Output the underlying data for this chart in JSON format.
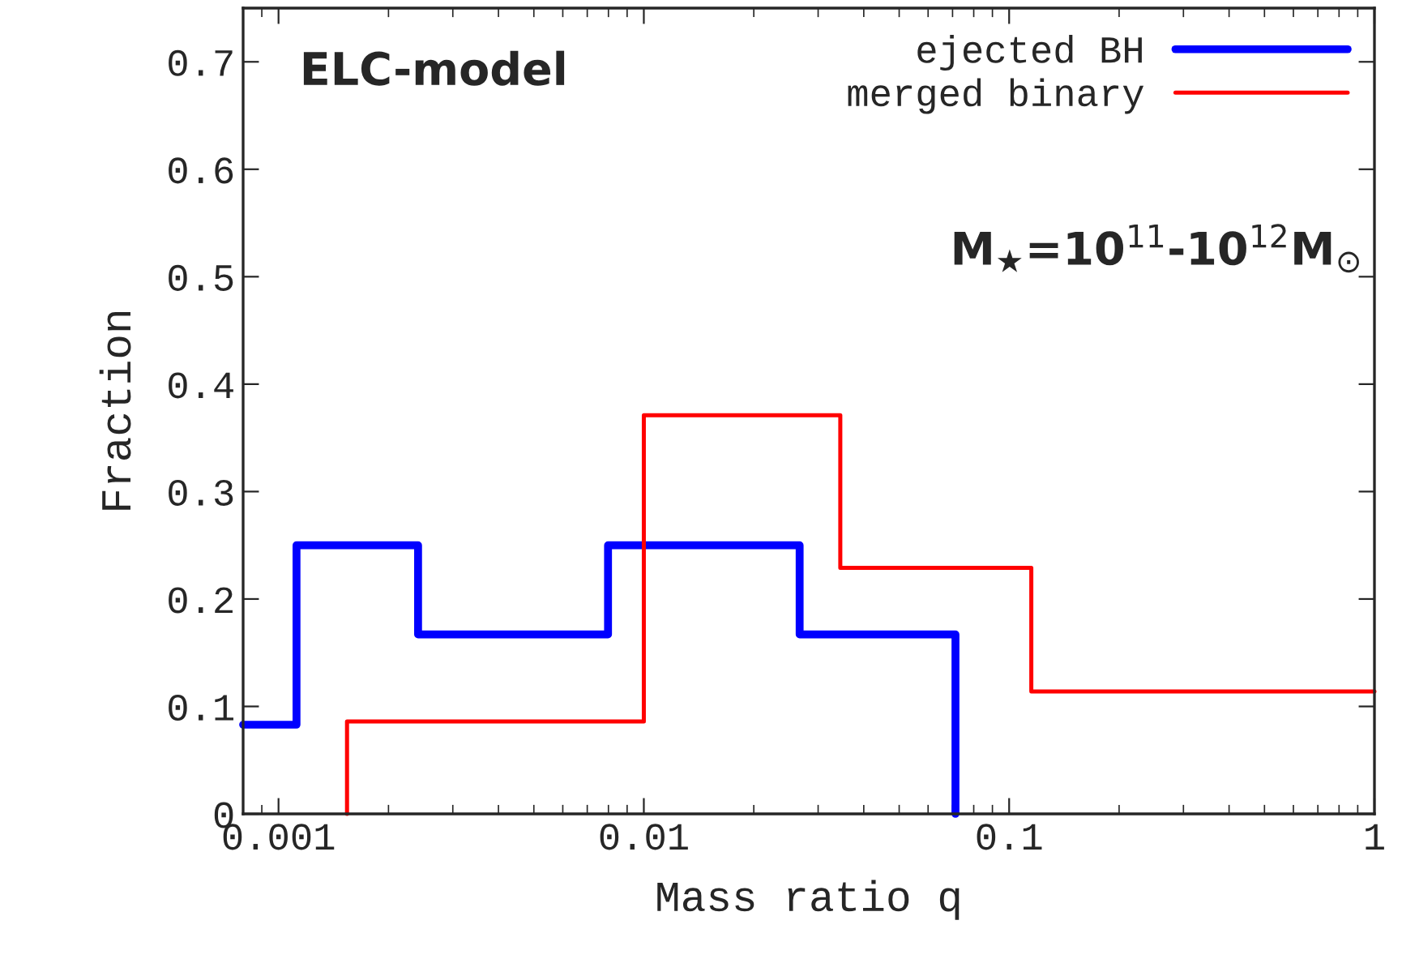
{
  "chart_data": {
    "type": "step",
    "xlabel": "Mass ratio q",
    "ylabel": "Fraction",
    "annotations": [
      "ELC-model",
      "M$_{★}$=10$^{11}$-10$^{12}$M$_{⊙}$"
    ],
    "series": [
      {
        "name": "ejected BH",
        "color": "#0000ff",
        "x": [
          0.0008,
          0.00112,
          0.00241,
          0.00798,
          0.0267,
          0.0713
        ],
        "values": [
          0.083,
          0.25,
          0.167,
          0.25,
          0.167,
          0
        ]
      },
      {
        "name": "merged binary",
        "color": "#ff0000",
        "x": [
          0.00154,
          0.00154,
          0.01,
          0.0345,
          0.115,
          1
        ],
        "values": [
          0,
          0.086,
          0.371,
          0.229,
          0.114,
          0.114
        ]
      }
    ],
    "log": "x",
    "xlim": [
      0.0008,
      1
    ],
    "xticks": [
      0.001,
      0.01,
      0.1,
      1
    ],
    "ylim": [
      0,
      0.75
    ],
    "yticks": [
      0,
      0.1,
      0.2,
      0.3,
      0.4,
      0.5,
      0.6,
      0.7
    ],
    "grid": false,
    "legend": "top right"
  }
}
